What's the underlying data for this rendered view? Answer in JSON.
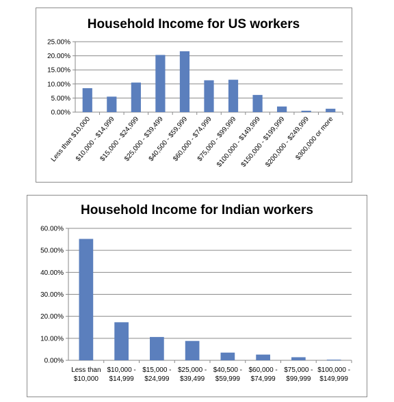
{
  "chart_data": [
    {
      "type": "bar",
      "title": "Household Income for US workers",
      "categories": [
        "Less than $10,000",
        "$10,000 - $14,999",
        "$15,000 - $24,999",
        "$25,000 - $39,499",
        "$40,500 - $59,999",
        "$60,000 - $74,999",
        "$75,000 - $99,999",
        "$100,000 - $149,999",
        "$150,000 - $199,999",
        "$200,000 - $249,999",
        "$300,000 or more"
      ],
      "values": [
        8.5,
        5.5,
        10.5,
        20.3,
        21.6,
        11.3,
        11.5,
        6.1,
        2.0,
        0.5,
        1.2
      ],
      "yticks": [
        "0.00%",
        "5.00%",
        "10.00%",
        "15.00%",
        "20.00%",
        "25.00%"
      ],
      "ylim": [
        0,
        25
      ],
      "grid": true,
      "color": "#5b7fbd"
    },
    {
      "type": "bar",
      "title": "Household Income for Indian workers",
      "categories": [
        [
          "Less than",
          "$10,000"
        ],
        [
          "$10,000 -",
          "$14,999"
        ],
        [
          "$15,000 -",
          "$24,999"
        ],
        [
          "$25,000 -",
          "$39,499"
        ],
        [
          "$40,500 -",
          "$59,999"
        ],
        [
          "$60,000 -",
          "$74,999"
        ],
        [
          "$75,000 -",
          "$99,999"
        ],
        [
          "$100,000 -",
          "$149,999"
        ]
      ],
      "values": [
        55.2,
        17.3,
        10.6,
        8.8,
        3.5,
        2.6,
        1.4,
        0.3
      ],
      "yticks": [
        "0.00%",
        "10.00%",
        "20.00%",
        "30.00%",
        "40.00%",
        "50.00%",
        "60.00%"
      ],
      "ylim": [
        0,
        60
      ],
      "grid": true,
      "color": "#5b7fbd"
    }
  ]
}
